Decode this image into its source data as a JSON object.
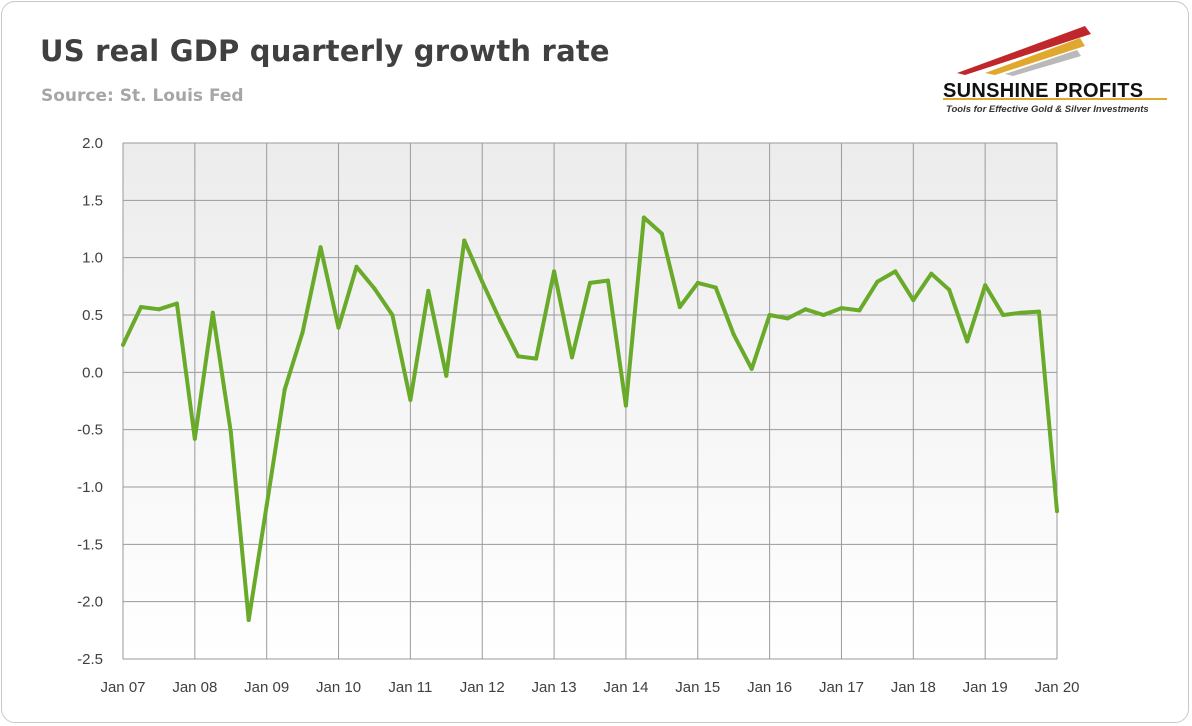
{
  "header": {
    "title": "US real GDP quarterly growth rate",
    "subtitle": "Source: St. Louis Fed"
  },
  "logo": {
    "name": "SUNSHINE PROFITS",
    "tagline": "Tools for Effective Gold & Silver Investments",
    "colors": {
      "red": "#c0272d",
      "gold": "#e0a82e"
    }
  },
  "chart_data": {
    "type": "line",
    "title": "US real GDP quarterly growth rate",
    "subtitle": "Source: St. Louis Fed",
    "xlabel": "",
    "ylabel": "",
    "ylim": [
      -2.5,
      2.0
    ],
    "y_ticks": [
      2.0,
      1.5,
      1.0,
      0.5,
      0.0,
      -0.5,
      -1.0,
      -1.5,
      -2.0,
      -2.5
    ],
    "y_tick_labels": [
      "2.0",
      "1.5",
      "1.0",
      "0.5",
      "0.0",
      "-0.5",
      "-1.0",
      "-1.5",
      "-2.0",
      "-2.5"
    ],
    "x_tick_labels": [
      "Jan 07",
      "Jan 08",
      "Jan 09",
      "Jan 10",
      "Jan 11",
      "Jan 12",
      "Jan 13",
      "Jan 14",
      "Jan 15",
      "Jan 16",
      "Jan 17",
      "Jan 18",
      "Jan 19",
      "Jan 20"
    ],
    "grid": true,
    "legend": "none",
    "line_color": "#6aaa2a",
    "series": [
      {
        "quarters": [
          "2007Q1",
          "2007Q2",
          "2007Q3",
          "2007Q4",
          "2008Q1",
          "2008Q2",
          "2008Q3",
          "2008Q4",
          "2009Q1",
          "2009Q2",
          "2009Q3",
          "2009Q4",
          "2010Q1",
          "2010Q2",
          "2010Q3",
          "2010Q4",
          "2011Q1",
          "2011Q2",
          "2011Q3",
          "2011Q4",
          "2012Q1",
          "2012Q2",
          "2012Q3",
          "2012Q4",
          "2013Q1",
          "2013Q2",
          "2013Q3",
          "2013Q4",
          "2014Q1",
          "2014Q2",
          "2014Q3",
          "2014Q4",
          "2015Q1",
          "2015Q2",
          "2015Q3",
          "2015Q4",
          "2016Q1",
          "2016Q2",
          "2016Q3",
          "2016Q4",
          "2017Q1",
          "2017Q2",
          "2017Q3",
          "2017Q4",
          "2018Q1",
          "2018Q2",
          "2018Q3",
          "2018Q4",
          "2019Q1",
          "2019Q2",
          "2019Q3",
          "2019Q4",
          "2020Q1"
        ],
        "values": [
          0.24,
          0.57,
          0.55,
          0.6,
          -0.58,
          0.52,
          -0.52,
          -2.16,
          -1.16,
          -0.15,
          0.35,
          1.09,
          0.39,
          0.92,
          0.73,
          0.5,
          -0.24,
          0.71,
          -0.03,
          1.15,
          0.79,
          0.45,
          0.14,
          0.12,
          0.88,
          0.13,
          0.78,
          0.8,
          -0.29,
          1.35,
          1.21,
          0.57,
          0.78,
          0.74,
          0.33,
          0.03,
          0.5,
          0.47,
          0.55,
          0.5,
          0.56,
          0.54,
          0.79,
          0.88,
          0.63,
          0.86,
          0.72,
          0.27,
          0.76,
          0.5,
          0.52,
          0.53,
          -1.21
        ]
      }
    ]
  }
}
